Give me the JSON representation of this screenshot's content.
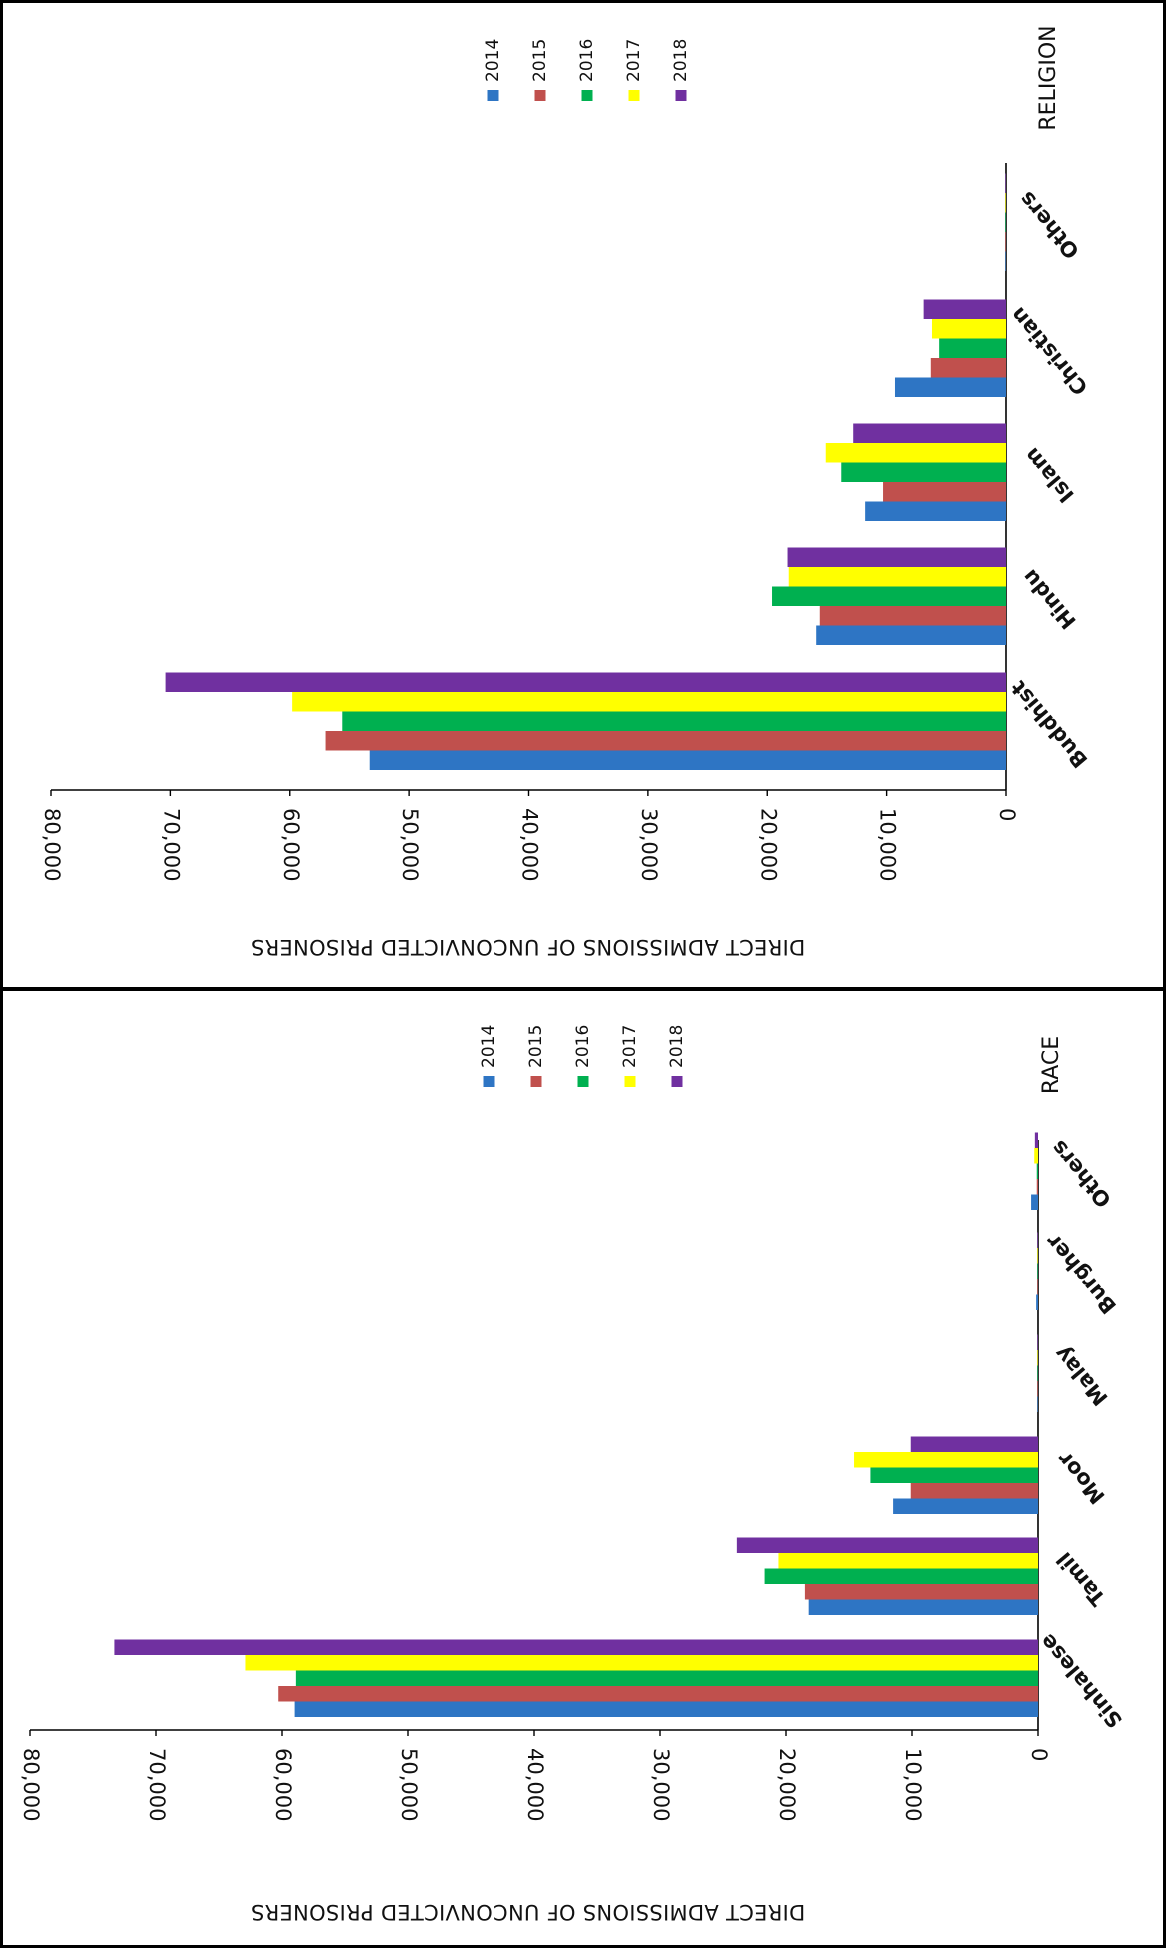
{
  "colors": {
    "2014": "#2e75c4",
    "2015": "#c0504d",
    "2016": "#00b050",
    "2017": "#ffff00",
    "2018": "#7030a0"
  },
  "chart_data": [
    {
      "id": "religion",
      "type": "bar",
      "title": "RELIGION",
      "ylabel": "DIRECT ADMISSIONS OF UNCONVICTED PRISONERS",
      "xlabel": "",
      "ylim": [
        0,
        80000
      ],
      "yticks": [
        "0",
        "10,000",
        "20,000",
        "30,000",
        "40,000",
        "50,000",
        "60,000",
        "70,000",
        "80,000"
      ],
      "categories": [
        "Buddhist",
        "Hindu",
        "Islam",
        "Christian",
        "Others"
      ],
      "series": [
        {
          "name": "2014",
          "values": [
            53300,
            15900,
            11800,
            9300,
            30
          ]
        },
        {
          "name": "2015",
          "values": [
            57000,
            15600,
            10300,
            6300,
            30
          ]
        },
        {
          "name": "2016",
          "values": [
            55600,
            19600,
            13800,
            5600,
            30
          ]
        },
        {
          "name": "2017",
          "values": [
            59800,
            18200,
            15100,
            6200,
            30
          ]
        },
        {
          "name": "2018",
          "values": [
            70400,
            18300,
            12800,
            6900,
            30
          ]
        }
      ],
      "legend": [
        "2014",
        "2015",
        "2016",
        "2017",
        "2018"
      ],
      "legend_position": "bottom-right"
    },
    {
      "id": "race",
      "type": "bar",
      "title": "RACE",
      "ylabel": "DIRECT ADMISSIONS OF UNCONVICTED PRISONERS",
      "xlabel": "",
      "ylim": [
        0,
        80000
      ],
      "yticks": [
        "0",
        "10,000",
        "20,000",
        "30,000",
        "40,000",
        "50,000",
        "60,000",
        "70,000",
        "80,000"
      ],
      "categories": [
        "Sinhalese",
        "Tamil",
        "Moor",
        "Malay",
        "Burgher",
        "Others"
      ],
      "series": [
        {
          "name": "2014",
          "values": [
            59000,
            18200,
            11500,
            30,
            150,
            550
          ]
        },
        {
          "name": "2015",
          "values": [
            60300,
            18500,
            10100,
            30,
            50,
            100
          ]
        },
        {
          "name": "2016",
          "values": [
            58900,
            21700,
            13300,
            30,
            50,
            100
          ]
        },
        {
          "name": "2017",
          "values": [
            62900,
            20600,
            14600,
            30,
            50,
            300
          ]
        },
        {
          "name": "2018",
          "values": [
            73300,
            23900,
            10100,
            30,
            50,
            250
          ]
        }
      ],
      "legend": [
        "2014",
        "2015",
        "2016",
        "2017",
        "2018"
      ],
      "legend_position": "bottom-right"
    }
  ]
}
